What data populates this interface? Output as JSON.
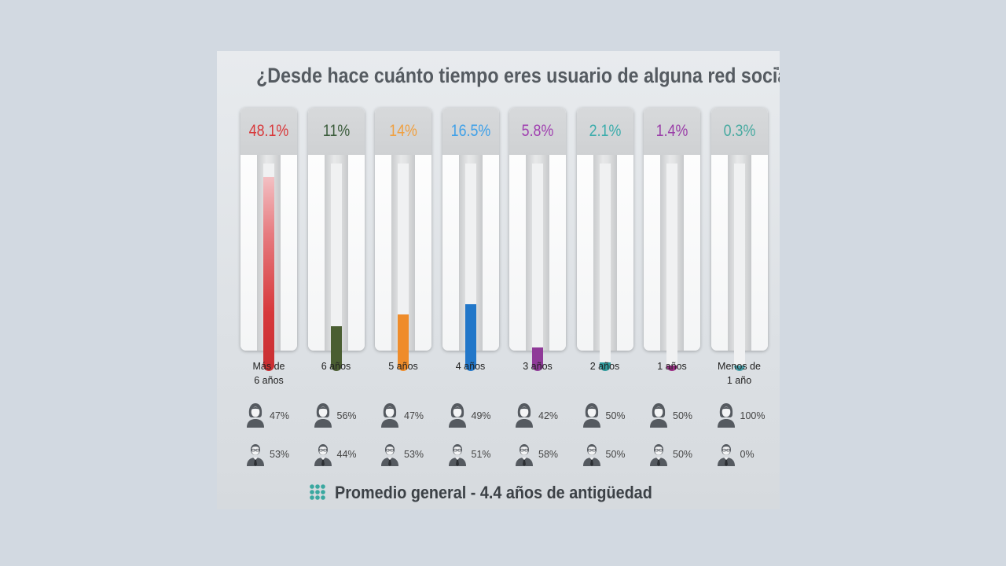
{
  "chart_data": {
    "type": "bar",
    "title": "¿Desde hace cuánto tiempo eres usuario de alguna red social?",
    "categories": [
      "Más de 6 años",
      "6 años",
      "5 años",
      "4 años",
      "3 años",
      "2 años",
      "1 años",
      "Menos de 1 año"
    ],
    "category_lines": [
      [
        "Más de",
        "6 años"
      ],
      [
        "6 años"
      ],
      [
        "5 años"
      ],
      [
        "4 años"
      ],
      [
        "3 años"
      ],
      [
        "2 años"
      ],
      [
        "1 años"
      ],
      [
        "Menos de",
        "1 año"
      ]
    ],
    "values": [
      48.1,
      11,
      14,
      16.5,
      5.8,
      2.1,
      1.4,
      0.3
    ],
    "value_labels": [
      "48.1%",
      "11%",
      "14%",
      "16.5%",
      "5.8%",
      "2.1%",
      "1.4%",
      "0.3%"
    ],
    "ylim": [
      0,
      50
    ],
    "colors": [
      "#d7393b",
      "#4a5e32",
      "#ef8c2a",
      "#2277c9",
      "#8f3a98",
      "#2f9a9c",
      "#9c2e85",
      "#4aa2ac"
    ],
    "label_colors": [
      "#d8383a",
      "#3b5c3b",
      "#f0a040",
      "#3ea0e8",
      "#a040b0",
      "#3aacab",
      "#9a3ea8",
      "#47aaa0"
    ],
    "gender_split": {
      "female": [
        "47%",
        "56%",
        "47%",
        "49%",
        "42%",
        "50%",
        "50%",
        "100%"
      ],
      "male": [
        "53%",
        "44%",
        "53%",
        "51%",
        "58%",
        "50%",
        "50%",
        "0%"
      ]
    }
  },
  "icons": {
    "female": "woman-icon",
    "male": "man-with-tie-icon",
    "footer": "grid-dots-icon"
  },
  "footer": {
    "text": "Promedio general - 4.4 años de antigüedad",
    "icon_color": "#3aa8a0"
  }
}
